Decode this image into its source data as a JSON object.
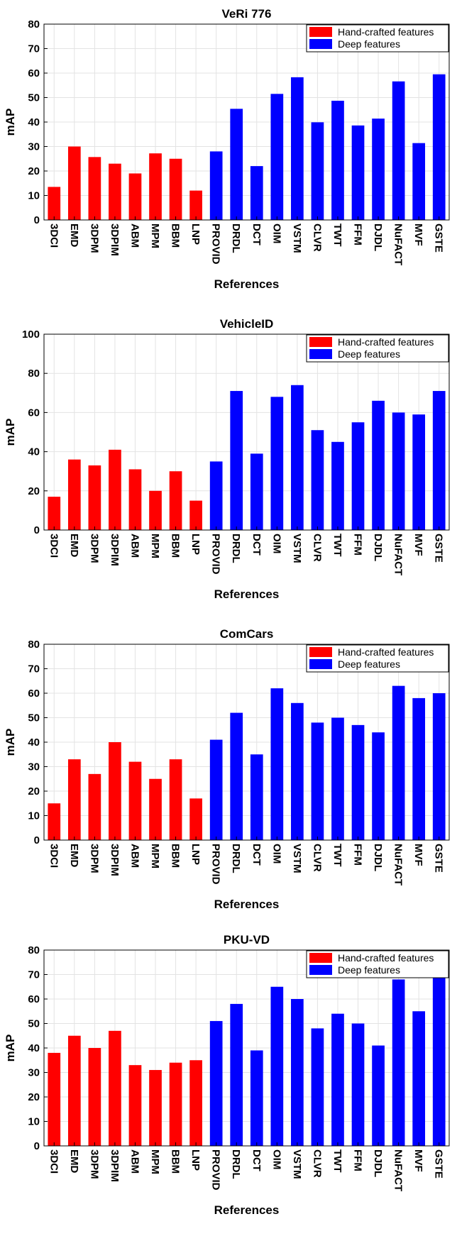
{
  "chart_data": [
    {
      "type": "bar",
      "title": "VeRi 776",
      "xlabel": "References",
      "ylabel": "mAP",
      "ylim": [
        0,
        80
      ],
      "yticks": [
        0,
        10,
        20,
        30,
        40,
        50,
        60,
        70,
        80
      ],
      "grid": true,
      "legend_position": "top-right",
      "categories": [
        "3DCI",
        "EMD",
        "3DPM",
        "3DPIM",
        "ABM",
        "MPM",
        "BBM",
        "LNP",
        "PROVID",
        "DRDL",
        "DCT",
        "OIM",
        "VSTM",
        "CLVR",
        "TWT",
        "FFM",
        "DJDL",
        "NuFACT",
        "MVF",
        "GSTE"
      ],
      "values": [
        13.5,
        30,
        25.7,
        23,
        19,
        27.2,
        25,
        12,
        28,
        45.4,
        22,
        51.5,
        58.3,
        39.9,
        48.7,
        38.6,
        41.4,
        56.6,
        31.4,
        59.5
      ],
      "series": [
        {
          "name": "Hand-crafted features",
          "color": "#ff0000"
        },
        {
          "name": "Deep features",
          "color": "#0000ff"
        }
      ],
      "series_index": [
        0,
        0,
        0,
        0,
        0,
        0,
        0,
        0,
        1,
        1,
        1,
        1,
        1,
        1,
        1,
        1,
        1,
        1,
        1,
        1
      ]
    },
    {
      "type": "bar",
      "title": "VehicleID",
      "xlabel": "References",
      "ylabel": "mAP",
      "ylim": [
        0,
        100
      ],
      "yticks": [
        0,
        20,
        40,
        60,
        80,
        100
      ],
      "grid": true,
      "legend_position": "top-right",
      "categories": [
        "3DCI",
        "EMD",
        "3DPM",
        "3DPIM",
        "ABM",
        "MPM",
        "BBM",
        "LNP",
        "PROVID",
        "DRDL",
        "DCT",
        "OIM",
        "VSTM",
        "CLVR",
        "TWT",
        "FFM",
        "DJDL",
        "NuFACT",
        "MVF",
        "GSTE"
      ],
      "values": [
        17,
        36,
        33,
        41,
        31,
        20,
        30,
        15,
        35,
        71,
        39,
        68,
        74,
        51,
        45,
        55,
        66,
        60,
        59,
        71
      ],
      "series": [
        {
          "name": "Hand-crafted features",
          "color": "#ff0000"
        },
        {
          "name": "Deep features",
          "color": "#0000ff"
        }
      ],
      "series_index": [
        0,
        0,
        0,
        0,
        0,
        0,
        0,
        0,
        1,
        1,
        1,
        1,
        1,
        1,
        1,
        1,
        1,
        1,
        1,
        1
      ]
    },
    {
      "type": "bar",
      "title": "ComCars",
      "xlabel": "References",
      "ylabel": "mAP",
      "ylim": [
        0,
        80
      ],
      "yticks": [
        0,
        10,
        20,
        30,
        40,
        50,
        60,
        70,
        80
      ],
      "grid": true,
      "legend_position": "top-right",
      "categories": [
        "3DCI",
        "EMD",
        "3DPM",
        "3DPIM",
        "ABM",
        "MPM",
        "BBM",
        "LNP",
        "PROVID",
        "DRDL",
        "DCT",
        "OIM",
        "VSTM",
        "CLVR",
        "TWT",
        "FFM",
        "DJDL",
        "NuFACT",
        "MVF",
        "GSTE"
      ],
      "values": [
        15,
        33,
        27,
        40,
        32,
        25,
        33,
        17,
        41,
        52,
        35,
        62,
        56,
        48,
        50,
        47,
        44,
        63,
        58,
        60
      ],
      "series": [
        {
          "name": "Hand-crafted features",
          "color": "#ff0000"
        },
        {
          "name": "Deep features",
          "color": "#0000ff"
        }
      ],
      "series_index": [
        0,
        0,
        0,
        0,
        0,
        0,
        0,
        0,
        1,
        1,
        1,
        1,
        1,
        1,
        1,
        1,
        1,
        1,
        1,
        1
      ]
    },
    {
      "type": "bar",
      "title": "PKU-VD",
      "xlabel": "References",
      "ylabel": "mAP",
      "ylim": [
        0,
        80
      ],
      "yticks": [
        0,
        10,
        20,
        30,
        40,
        50,
        60,
        70,
        80
      ],
      "grid": true,
      "legend_position": "top-right",
      "categories": [
        "3DCI",
        "EMD",
        "3DPM",
        "3DPIM",
        "ABM",
        "MPM",
        "BBM",
        "LNP",
        "PROVID",
        "DRDL",
        "DCT",
        "OIM",
        "VSTM",
        "CLVR",
        "TWT",
        "FFM",
        "DJDL",
        "NuFACT",
        "MVF",
        "GSTE"
      ],
      "values": [
        38,
        45,
        40,
        47,
        33,
        31,
        34,
        35,
        51,
        58,
        39,
        65,
        60,
        48,
        54,
        50,
        41,
        68,
        55,
        70
      ],
      "series": [
        {
          "name": "Hand-crafted features",
          "color": "#ff0000"
        },
        {
          "name": "Deep features",
          "color": "#0000ff"
        }
      ],
      "series_index": [
        0,
        0,
        0,
        0,
        0,
        0,
        0,
        0,
        1,
        1,
        1,
        1,
        1,
        1,
        1,
        1,
        1,
        1,
        1,
        1
      ]
    }
  ]
}
